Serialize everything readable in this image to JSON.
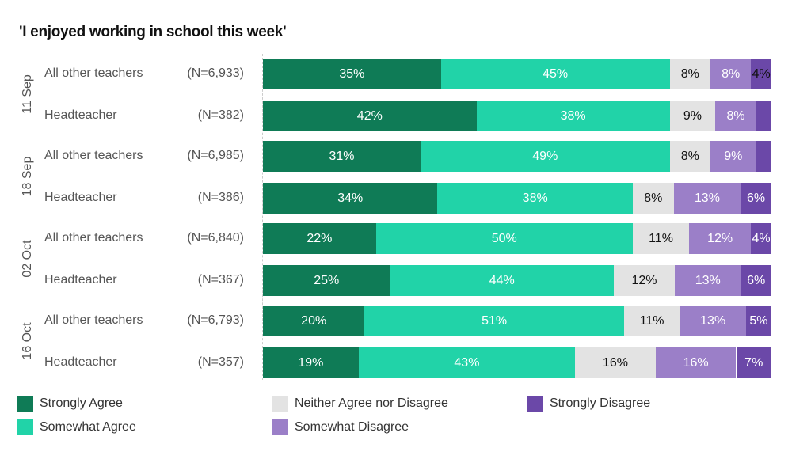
{
  "chart_data": {
    "type": "bar",
    "orientation": "horizontal",
    "stacked": true,
    "title": "'I enjoyed working in school this week'",
    "xlabel": "",
    "ylabel": "",
    "xlim": [
      0,
      100
    ],
    "legend_position": "bottom",
    "series": [
      {
        "name": "Strongly Agree",
        "color": "#0F7B56",
        "label_color": "#ffffff"
      },
      {
        "name": "Somewhat Agree",
        "color": "#21D3A8",
        "label_color": "#ffffff"
      },
      {
        "name": "Neither Agree nor Disagree",
        "color": "#E3E3E3",
        "label_color": "#111111"
      },
      {
        "name": "Somewhat Disagree",
        "color": "#9B7FC8",
        "label_color": "#ffffff"
      },
      {
        "name": "Strongly Disagree",
        "color": "#6B48A8",
        "label_color": "#ffffff"
      }
    ],
    "groups": [
      {
        "date": "11 Sep",
        "rows": [
          {
            "label": "All other teachers",
            "n": "(N=6,933)",
            "values": [
              35,
              45,
              8,
              8,
              4
            ],
            "labels": [
              "35%",
              "45%",
              "8%",
              "8%",
              "4%"
            ],
            "dark_last_label": true
          },
          {
            "label": "Headteacher",
            "n": "(N=382)",
            "values": [
              42,
              38,
              9,
              8,
              3
            ],
            "labels": [
              "42%",
              "38%",
              "9%",
              "8%",
              ""
            ]
          }
        ]
      },
      {
        "date": "18 Sep",
        "rows": [
          {
            "label": "All other teachers",
            "n": "(N=6,985)",
            "values": [
              31,
              49,
              8,
              9,
              3
            ],
            "labels": [
              "31%",
              "49%",
              "8%",
              "9%",
              ""
            ]
          },
          {
            "label": "Headteacher",
            "n": "(N=386)",
            "values": [
              34,
              38,
              8,
              13,
              6
            ],
            "labels": [
              "34%",
              "38%",
              "8%",
              "13%",
              "6%"
            ]
          }
        ]
      },
      {
        "date": "02 Oct",
        "rows": [
          {
            "label": "All other teachers",
            "n": "(N=6,840)",
            "values": [
              22,
              50,
              11,
              12,
              4
            ],
            "labels": [
              "22%",
              "50%",
              "11%",
              "12%",
              "4%"
            ]
          },
          {
            "label": "Headteacher",
            "n": "(N=367)",
            "values": [
              25,
              44,
              12,
              13,
              6
            ],
            "labels": [
              "25%",
              "44%",
              "12%",
              "13%",
              "6%"
            ]
          }
        ]
      },
      {
        "date": "16 Oct",
        "rows": [
          {
            "label": "All other teachers",
            "n": "(N=6,793)",
            "values": [
              20,
              51,
              11,
              13,
              5
            ],
            "labels": [
              "20%",
              "51%",
              "11%",
              "13%",
              "5%"
            ]
          },
          {
            "label": "Headteacher",
            "n": "(N=357)",
            "values": [
              19,
              43,
              16,
              16,
              7
            ],
            "labels": [
              "19%",
              "43%",
              "16%",
              "16%",
              "7%"
            ]
          }
        ]
      }
    ]
  }
}
